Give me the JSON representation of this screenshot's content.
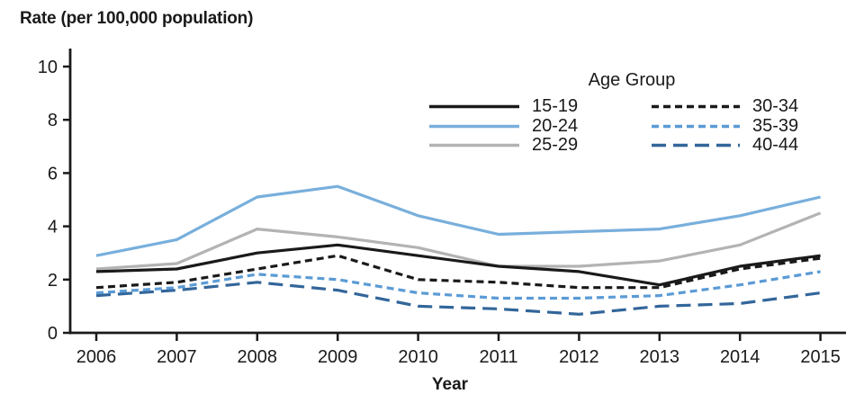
{
  "chart_data": {
    "type": "line",
    "title": "Rate (per 100,000 population)",
    "xlabel": "Year",
    "legend_title": "Age Group",
    "x": [
      2006,
      2007,
      2008,
      2009,
      2010,
      2011,
      2012,
      2013,
      2014,
      2015
    ],
    "ylim": [
      0,
      10
    ],
    "yticks": [
      0,
      2,
      4,
      6,
      8,
      10
    ],
    "grid": false,
    "legend_position": "top-right, two columns",
    "axis_color": "#1a1a1a",
    "series": [
      {
        "name": "15-19",
        "color": "#1a1a1a",
        "style": "solid",
        "values": [
          2.3,
          2.4,
          3.0,
          3.3,
          2.9,
          2.5,
          2.3,
          1.8,
          2.5,
          2.9
        ]
      },
      {
        "name": "20-24",
        "color": "#78AFDC",
        "style": "solid",
        "values": [
          2.9,
          3.5,
          5.1,
          5.5,
          4.4,
          3.7,
          3.8,
          3.9,
          4.4,
          5.1
        ]
      },
      {
        "name": "25-29",
        "color": "#B3B3B3",
        "style": "solid",
        "values": [
          2.4,
          2.6,
          3.9,
          3.6,
          3.2,
          2.5,
          2.5,
          2.7,
          3.3,
          4.5
        ]
      },
      {
        "name": "30-34",
        "color": "#1a1a1a",
        "style": "dashed",
        "values": [
          1.7,
          1.9,
          2.4,
          2.9,
          2.0,
          1.9,
          1.7,
          1.7,
          2.4,
          2.8
        ]
      },
      {
        "name": "35-39",
        "color": "#5B9BD5",
        "style": "dashed",
        "values": [
          1.5,
          1.7,
          2.2,
          2.0,
          1.5,
          1.3,
          1.3,
          1.4,
          1.8,
          2.3
        ]
      },
      {
        "name": "40-44",
        "color": "#33669A",
        "style": "long-dashed",
        "values": [
          1.4,
          1.6,
          1.9,
          1.6,
          1.0,
          0.9,
          0.7,
          1.0,
          1.1,
          1.5
        ]
      }
    ]
  }
}
